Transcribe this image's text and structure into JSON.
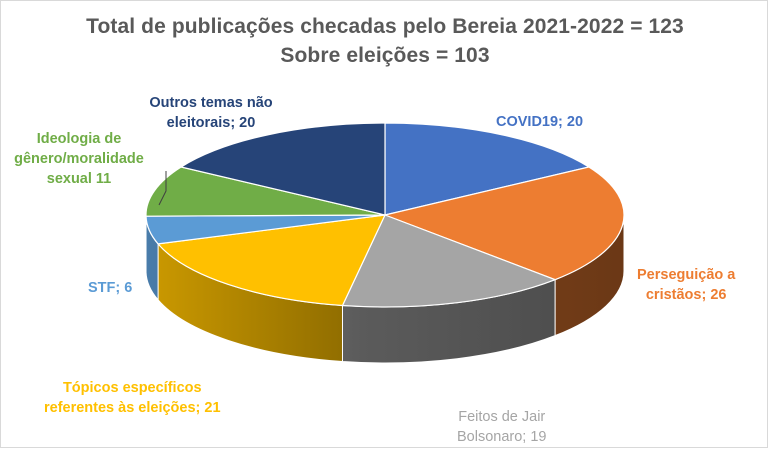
{
  "chart_data": {
    "type": "pie",
    "title": [
      "Total de publicações checadas pelo Bereia 2021-2022 = 123",
      "Sobre eleições = 103"
    ],
    "slices": [
      {
        "name": "COVID19",
        "value": 20,
        "label": "COVID19; 20",
        "color": "#4472c4"
      },
      {
        "name": "Perseguição a cristãos",
        "value": 26,
        "label": "Perseguição a cristãos; 26",
        "color": "#ed7d31"
      },
      {
        "name": "Feitos de Jair Bolsonaro",
        "value": 19,
        "label": "Feitos de Jair Bolsonaro; 19",
        "color": "#a5a5a5"
      },
      {
        "name": "Tópicos específicos referentes às eleições",
        "value": 21,
        "label": "Tópicos específicos referentes às eleições; 21",
        "color": "#ffc000"
      },
      {
        "name": "STF",
        "value": 6,
        "label": "STF; 6",
        "color": "#5b9bd5"
      },
      {
        "name": "Ideologia de gênero/moralidade sexual",
        "value": 11,
        "label": "Ideologia de gênero/moralidade sexual 11",
        "color": "#70ad47"
      },
      {
        "name": "Outros temas não eleitorais",
        "value": 20,
        "label": "Outros temas não eleitorais; 20",
        "color": "#264478"
      }
    ],
    "label_lines": {
      "slice_0": [
        "COVID19; 20"
      ],
      "slice_1": [
        "Perseguição a",
        "cristãos; 26"
      ],
      "slice_2": [
        "Feitos de Jair",
        "Bolsonaro; 19"
      ],
      "slice_3": [
        "Tópicos específicos",
        "referentes às eleições; 21"
      ],
      "slice_4": [
        "STF; 6"
      ],
      "slice_5": [
        "Ideologia de",
        "gênero/moralidade",
        "sexual 11"
      ],
      "slice_6": [
        "Outros temas não",
        "eleitorais; 20"
      ]
    }
  }
}
